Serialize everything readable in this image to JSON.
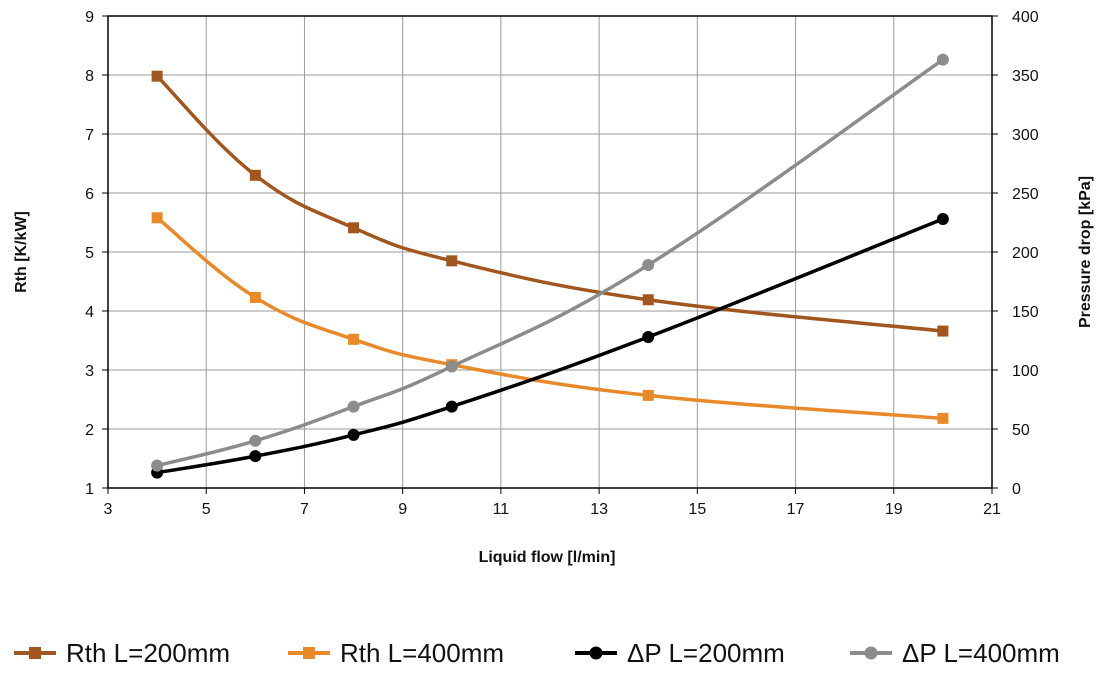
{
  "chart_data": {
    "type": "line",
    "title": "",
    "xlabel": "Liquid flow [l/min]",
    "ylabel_left": "Rth [K/kW]",
    "ylabel_right": "Pressure drop [kPa]",
    "xlim": [
      3,
      21
    ],
    "ylim_left": [
      1,
      9
    ],
    "ylim_right": [
      0,
      400
    ],
    "x_ticks": [
      "3",
      "5",
      "7",
      "9",
      "11",
      "13",
      "15",
      "17",
      "19",
      "21"
    ],
    "y_left_ticks": [
      "1",
      "2",
      "3",
      "4",
      "5",
      "6",
      "7",
      "8",
      "9"
    ],
    "y_right_ticks": [
      "0",
      "50",
      "100",
      "150",
      "200",
      "250",
      "300",
      "350",
      "400"
    ],
    "grid": true,
    "legend_position": "bottom",
    "x": [
      4,
      6,
      8,
      10,
      14,
      20
    ],
    "series": [
      {
        "name": "Rth L=200mm",
        "axis": "left",
        "color": "#A0561E",
        "marker": "square",
        "values": [
          7.98,
          6.3,
          5.41,
          4.85,
          4.19,
          3.66
        ]
      },
      {
        "name": "Rth L=400mm",
        "axis": "left",
        "color": "#E8892A",
        "marker": "square",
        "values": [
          5.58,
          4.23,
          3.52,
          3.09,
          2.57,
          2.18
        ]
      },
      {
        "name": "ΔP L=200mm",
        "axis": "right",
        "color": "#000000",
        "marker": "circle",
        "values": [
          13,
          27,
          45,
          69,
          128,
          228
        ]
      },
      {
        "name": "ΔP L=400mm",
        "axis": "right",
        "color": "#8C8C8C",
        "marker": "circle",
        "values": [
          19,
          40,
          69,
          103,
          189,
          363
        ]
      }
    ]
  }
}
